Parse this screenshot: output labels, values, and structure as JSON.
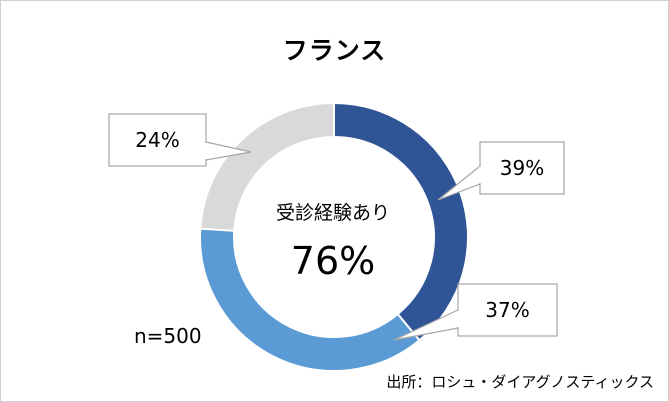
{
  "chart_data": {
    "type": "pie",
    "donut": true,
    "title": "フランス",
    "center_label": "受診経験あり",
    "center_value": "76%",
    "sample_size": "n=500",
    "source": "出所：ロシュ・ダイアグノスティックス",
    "slices": [
      {
        "value": 39,
        "label": "39%",
        "color": "#2f5597"
      },
      {
        "value": 37,
        "label": "37%",
        "color": "#5b9bd5"
      },
      {
        "value": 24,
        "label": "24%",
        "color": "#d9d9d9"
      }
    ]
  }
}
